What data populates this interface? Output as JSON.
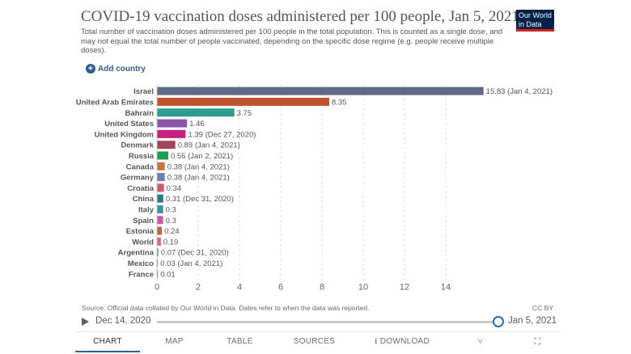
{
  "header": {
    "title": "COVID-19 vaccination doses administered per 100 people, Jan 5, 2021",
    "subtitle": "Total number of vaccination doses administered per 100 people in the total population. This is counted as a single dose, and may not equal the total number of people vaccinated, depending on the specific dose regime (e.g. people receive multiple doses).",
    "logo_line1": "Our World",
    "logo_line2": "in Data",
    "add_country_label": "Add country"
  },
  "chart_data": {
    "type": "bar",
    "orientation": "horizontal",
    "categories": [
      "Israel",
      "United Arab Emirates",
      "Bahrain",
      "United States",
      "United Kingdom",
      "Denmark",
      "Russia",
      "Canada",
      "Germany",
      "Croatia",
      "China",
      "Italy",
      "Spain",
      "Estonia",
      "World",
      "Argentina",
      "Mexico",
      "France"
    ],
    "values": [
      15.83,
      8.35,
      3.75,
      1.46,
      1.39,
      0.89,
      0.55,
      0.38,
      0.38,
      0.34,
      0.31,
      0.3,
      0.3,
      0.24,
      0.19,
      0.07,
      0.03,
      0.01
    ],
    "value_labels": [
      "15.83 (Jan 4, 2021)",
      "8.35",
      "3.75",
      "1.46",
      "1.39 (Dec 27, 2020)",
      "0.89 (Jan 4, 2021)",
      "0.55 (Jan 2, 2021)",
      "0.38 (Jan 4, 2021)",
      "0.38 (Jan 4, 2021)",
      "0.34",
      "0.31 (Dec 31, 2020)",
      "0.3",
      "0.3",
      "0.24",
      "0.19",
      "0.07 (Dec 31, 2020)",
      "0.03 (Jan 4, 2021)",
      "0.01"
    ],
    "colors": [
      "#5d6b84",
      "#c0532d",
      "#2a9d8f",
      "#8a55a8",
      "#c8207f",
      "#a0485a",
      "#1f9e4e",
      "#c8743c",
      "#6b7fb5",
      "#d05a6a",
      "#2d7a8a",
      "#3a8fb0",
      "#c65aa8",
      "#c0604a",
      "#d06a8a",
      "#3aa7a0",
      "#8a6ab0",
      "#b0508a"
    ],
    "xlim": [
      0,
      16
    ],
    "xticks": [
      0,
      2,
      4,
      6,
      8,
      10,
      12,
      14
    ],
    "grid": "vertical dashed",
    "title": "COVID-19 vaccination doses administered per 100 people, Jan 5, 2021",
    "xlabel": "",
    "ylabel": ""
  },
  "footer": {
    "source": "Source: Official data collated by Our World in Data. Dates refer to when the data was reported.",
    "license": "CC BY"
  },
  "timeline": {
    "start_date": "Dec 14, 2020",
    "end_date": "Jan 5, 2021",
    "position": 1.0
  },
  "tabs": {
    "chart": "CHART",
    "map": "MAP",
    "table": "TABLE",
    "sources": "SOURCES",
    "download": "DOWNLOAD"
  },
  "icons": {
    "play": "play-icon",
    "share": "share-icon",
    "expand": "expand-icon",
    "add": "plus-icon",
    "download": "download-icon"
  }
}
